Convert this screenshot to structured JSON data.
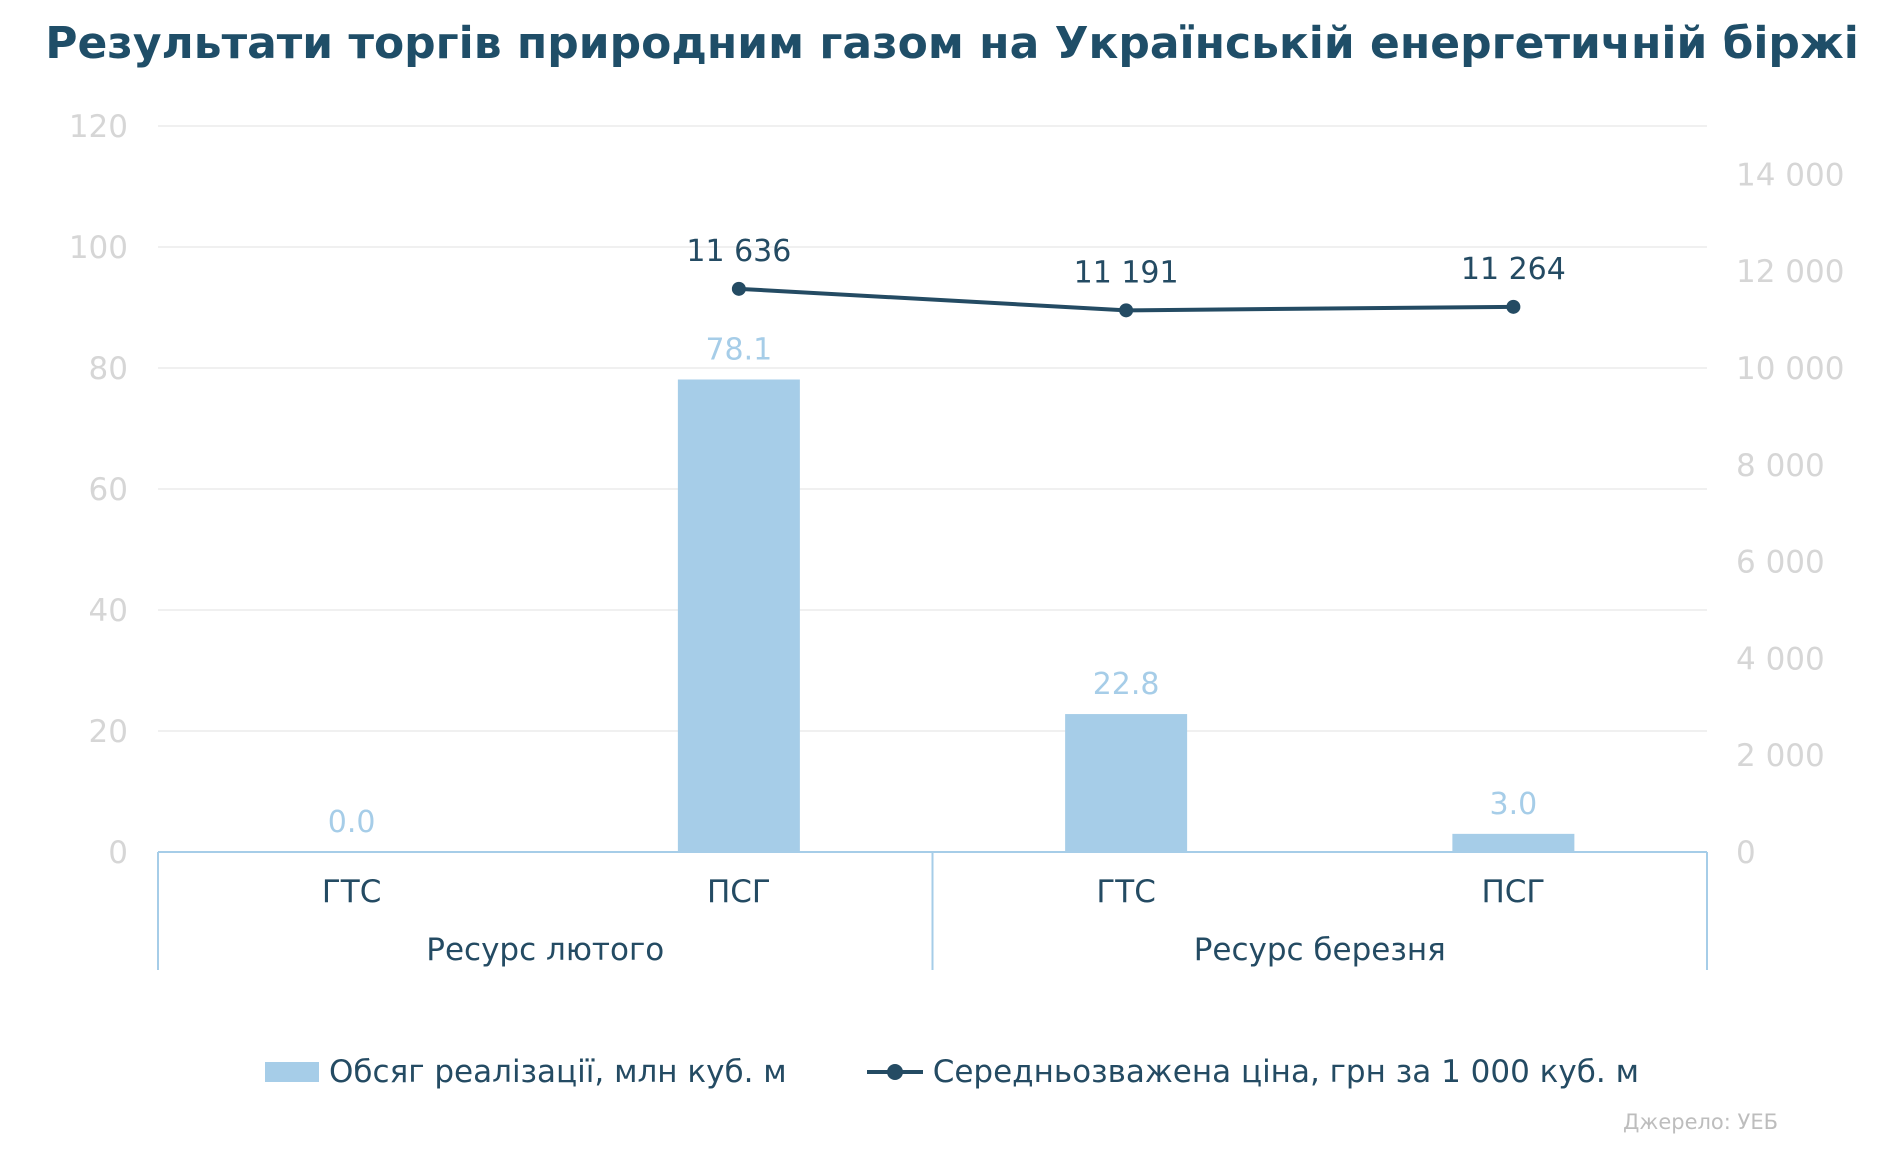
{
  "title": "Результати торгів природним газом на Українській енергетичній біржі",
  "source": "Джерело: УЕБ",
  "colors": {
    "bars": "#a6cde8",
    "line": "#244b63",
    "title": "#1f4e68",
    "ticks": "#d6d6d6"
  },
  "chart_data": {
    "type": "bar",
    "title": "Результати торгів природним газом на Українській енергетичній біржі",
    "categories": [
      "ГТС",
      "ПСГ",
      "ГТС",
      "ПСГ"
    ],
    "groups": [
      {
        "label": "Ресурс лютого",
        "categories": [
          "ГТС",
          "ПСГ"
        ]
      },
      {
        "label": "Ресурс березня",
        "categories": [
          "ГТС",
          "ПСГ"
        ]
      }
    ],
    "y_left": {
      "lim": [
        0,
        120
      ],
      "ticks": [
        "0",
        "20",
        "40",
        "60",
        "80",
        "100",
        "120"
      ]
    },
    "y_right": {
      "lim": [
        0,
        15000
      ],
      "ticks": [
        "0",
        "2 000",
        "4 000",
        "6 000",
        "8 000",
        "10 000",
        "12 000",
        "14 000"
      ]
    },
    "grid": true,
    "legend_position": "bottom",
    "series": [
      {
        "name": "Обсяг реалізації, млн куб. м",
        "type": "bar",
        "axis": "left",
        "values": [
          0.0,
          78.1,
          22.8,
          3.0
        ],
        "labels": [
          "0.0",
          "78.1",
          "22.8",
          "3.0"
        ]
      },
      {
        "name": "Середньозважена ціна, грн за 1 000 куб. м",
        "type": "line",
        "axis": "right",
        "values": [
          null,
          11636,
          11191,
          11264
        ],
        "labels": [
          null,
          "11 636",
          "11 191",
          "11 264"
        ]
      }
    ]
  }
}
